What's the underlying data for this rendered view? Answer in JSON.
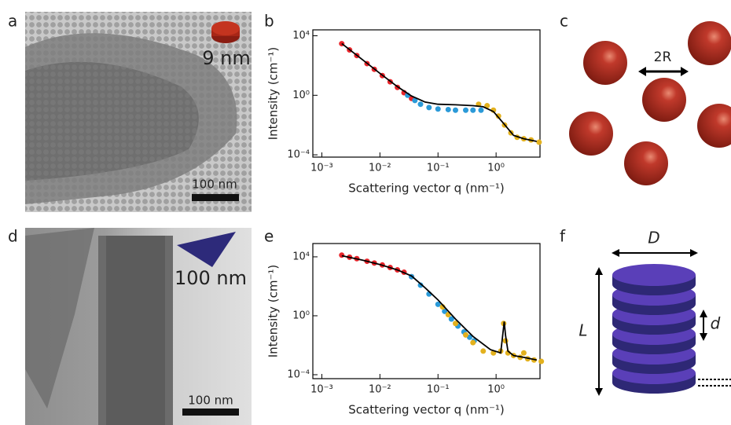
{
  "panel_labels": [
    "a",
    "b",
    "c",
    "d",
    "e",
    "f"
  ],
  "images": [
    {
      "particle_label": "9 nm",
      "scale_bar": "100 nm"
    },
    {
      "particle_label": "100 nm",
      "scale_bar": "100 nm"
    }
  ],
  "schematics": {
    "spheres": {
      "spacing_label": "2R"
    },
    "stack": {
      "width_label": "D",
      "length_label": "L",
      "spacing_label": "d"
    }
  },
  "chart_data": [
    {
      "type": "scatter",
      "x_label": "Scattering vector q (nm⁻¹)",
      "y_label": "Intensity (cm⁻¹)",
      "xscale": "log",
      "yscale": "log",
      "xlim": [
        0.0007,
        5.7
      ],
      "ylim": [
        7e-05,
        25000
      ],
      "xticks": [
        {
          "value": 0.001,
          "label": "10⁻³"
        },
        {
          "value": 0.01,
          "label": "10⁻²"
        },
        {
          "value": 0.1,
          "label": "10⁻¹"
        },
        {
          "value": 1,
          "label": "10⁰"
        }
      ],
      "yticks": [
        {
          "value": 0.0001,
          "label": "10⁻⁴"
        },
        {
          "value": 1,
          "label": "10⁰"
        },
        {
          "value": 10000,
          "label": "10⁴"
        }
      ],
      "series": [
        {
          "color": "#e8242a",
          "style": "points",
          "x": [
            0.0022,
            0.003,
            0.004,
            0.006,
            0.008,
            0.011,
            0.015,
            0.02,
            0.026,
            0.035
          ],
          "values": [
            2950,
            1120,
            470,
            135,
            56,
            21,
            8.1,
            3.4,
            1.5,
            0.62
          ]
        },
        {
          "color": "#2b9ad8",
          "style": "points",
          "x": [
            0.03,
            0.04,
            0.05,
            0.07,
            0.1,
            0.15,
            0.2,
            0.3,
            0.4,
            0.55
          ],
          "values": [
            1.0,
            0.45,
            0.25,
            0.15,
            0.12,
            0.11,
            0.1,
            0.1,
            0.1,
            0.1
          ]
        },
        {
          "color": "#e3b11e",
          "style": "points",
          "x": [
            0.5,
            0.7,
            0.9,
            1.1,
            1.4,
            1.8,
            2.3,
            3,
            4,
            5.5
          ],
          "values": [
            0.25,
            0.2,
            0.1,
            0.04,
            0.01,
            0.003,
            0.0015,
            0.0012,
            0.001,
            0.0007
          ]
        },
        {
          "color": "#000000",
          "style": "line",
          "x": [
            0.0022,
            0.005,
            0.01,
            0.02,
            0.035,
            0.06,
            0.1,
            0.2,
            0.4,
            0.6,
            0.9,
            1.3,
            2,
            3,
            5
          ],
          "values": [
            3000,
            250,
            30,
            3.8,
            0.9,
            0.35,
            0.25,
            0.23,
            0.2,
            0.17,
            0.08,
            0.015,
            0.002,
            0.0012,
            0.0008
          ]
        }
      ]
    },
    {
      "type": "scatter",
      "x_label": "Scattering vector q (nm⁻¹)",
      "y_label": "Intensity (cm⁻¹)",
      "xscale": "log",
      "yscale": "log",
      "xlim": [
        0.0007,
        5.7
      ],
      "ylim": [
        5.4e-05,
        80000
      ],
      "xticks": [
        {
          "value": 0.001,
          "label": "10⁻³"
        },
        {
          "value": 0.01,
          "label": "10⁻²"
        },
        {
          "value": 0.1,
          "label": "10⁻¹"
        },
        {
          "value": 1,
          "label": "10⁰"
        }
      ],
      "yticks": [
        {
          "value": 0.0001,
          "label": "10⁻⁴"
        },
        {
          "value": 1,
          "label": "10⁰"
        },
        {
          "value": 10000,
          "label": "10⁴"
        }
      ],
      "series": [
        {
          "color": "#e8242a",
          "style": "points",
          "x": [
            0.0022,
            0.003,
            0.004,
            0.006,
            0.008,
            0.011,
            0.015,
            0.02,
            0.026,
            0.035
          ],
          "values": [
            13000,
            9500,
            7500,
            5000,
            3800,
            2800,
            1900,
            1300,
            900,
            450
          ]
        },
        {
          "color": "#2b9ad8",
          "style": "points",
          "x": [
            0.035,
            0.05,
            0.07,
            0.1,
            0.13,
            0.17,
            0.22,
            0.28,
            0.35,
            0.42
          ],
          "values": [
            450,
            120,
            30,
            6,
            2,
            0.6,
            0.2,
            0.08,
            0.035,
            0.02
          ]
        },
        {
          "color": "#e3b11e",
          "style": "points",
          "x": [
            0.12,
            0.15,
            0.2,
            0.3,
            0.4,
            0.6,
            0.9,
            1.2,
            1.35,
            1.45,
            1.6,
            2,
            2.6,
            3,
            3.5,
            4.5,
            6
          ],
          "values": [
            4,
            1.2,
            0.3,
            0.05,
            0.015,
            0.004,
            0.003,
            0.004,
            0.3,
            0.02,
            0.003,
            0.002,
            0.0015,
            0.003,
            0.0012,
            0.001,
            0.0008
          ]
        },
        {
          "color": "#000000",
          "style": "line",
          "x": [
            0.0022,
            0.005,
            0.01,
            0.02,
            0.035,
            0.06,
            0.1,
            0.2,
            0.4,
            0.8,
            1.2,
            1.38,
            1.45,
            1.6,
            2,
            3,
            5
          ],
          "values": [
            12000,
            6000,
            3000,
            1300,
            500,
            80,
            12,
            0.6,
            0.04,
            0.005,
            0.003,
            0.4,
            0.05,
            0.004,
            0.002,
            0.0015,
            0.001
          ]
        }
      ]
    }
  ]
}
